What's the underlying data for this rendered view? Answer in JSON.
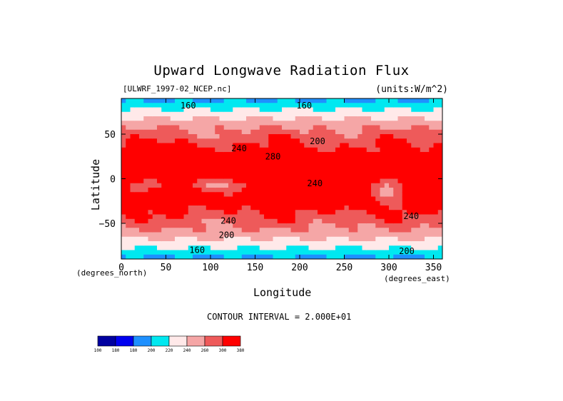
{
  "chart_data": {
    "type": "heatmap",
    "title": "Upward Longwave Radiation Flux",
    "file_label": "[ULWRF_1997-02_NCEP.nc]",
    "units_label": "(units:W/m^2)",
    "xlabel": "Longitude",
    "ylabel": "Latitude",
    "x_unit_label": "(degrees_east)",
    "y_unit_label": "(degrees_north)",
    "xlim": [
      0,
      360
    ],
    "ylim": [
      -90,
      90
    ],
    "x_ticks": [
      0,
      50,
      100,
      150,
      200,
      250,
      300,
      350
    ],
    "y_ticks": [
      50,
      0,
      -50
    ],
    "y_tick_labels": [
      "50",
      "0",
      "−50"
    ],
    "contour_interval_text": "CONTOUR INTERVAL = 2.000E+01",
    "contour_labels": [
      {
        "text": "160",
        "lon": 75,
        "lat": 82
      },
      {
        "text": "160",
        "lon": 205,
        "lat": 82
      },
      {
        "text": "200",
        "lon": 220,
        "lat": 42
      },
      {
        "text": "240",
        "lon": 132,
        "lat": 34
      },
      {
        "text": "280",
        "lon": 170,
        "lat": 25
      },
      {
        "text": "240",
        "lon": 217,
        "lat": -5
      },
      {
        "text": "240",
        "lon": 325,
        "lat": -42
      },
      {
        "text": "240",
        "lon": 120,
        "lat": -47
      },
      {
        "text": "200",
        "lon": 118,
        "lat": -63
      },
      {
        "text": "200",
        "lon": 320,
        "lat": -81
      },
      {
        "text": "160",
        "lon": 85,
        "lat": -80
      }
    ],
    "colorbar": {
      "levels": [
        "100",
        "180",
        "180",
        "200",
        "220",
        "240",
        "260",
        "300",
        "380"
      ],
      "colors": [
        "#0000a0",
        "#0000f0",
        "#1e90ff",
        "#00e8f0",
        "#ffe9e9",
        "#f5a6a6",
        "#ee5a5a",
        "#ff0000"
      ]
    }
  }
}
